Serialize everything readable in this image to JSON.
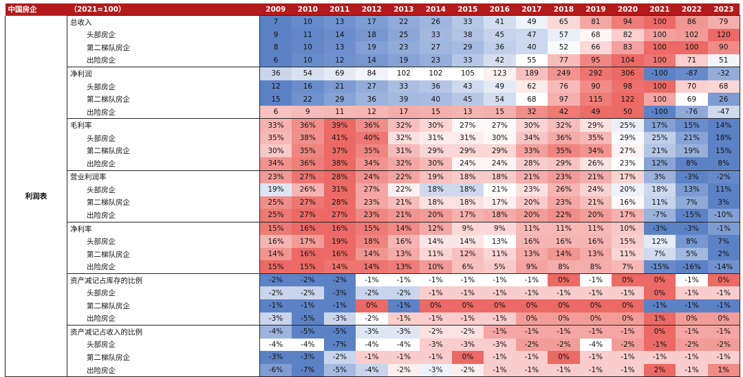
{
  "table": {
    "header_category": "中国房企",
    "header_index": "（2021=100）",
    "years": [
      "2009",
      "2010",
      "2011",
      "2012",
      "2013",
      "2014",
      "2015",
      "2016",
      "2017",
      "2018",
      "2019",
      "2020",
      "2021",
      "2022",
      "2023"
    ],
    "category": "利润表",
    "groups": [
      {
        "kind": "index",
        "rows": [
          {
            "label": "总收入",
            "indent": false,
            "values": [
              "7",
              "10",
              "13",
              "17",
              "22",
              "26",
              "33",
              "41",
              "49",
              "65",
              "81",
              "94",
              "100",
              "86",
              "79"
            ]
          },
          {
            "label": "头部房企",
            "indent": true,
            "values": [
              "9",
              "11",
              "14",
              "18",
              "25",
              "33",
              "38",
              "45",
              "47",
              "57",
              "68",
              "82",
              "100",
              "102",
              "120"
            ]
          },
          {
            "label": "第二梯队房企",
            "indent": true,
            "values": [
              "8",
              "10",
              "13",
              "19",
              "23",
              "27",
              "29",
              "36",
              "40",
              "52",
              "66",
              "83",
              "100",
              "100",
              "90"
            ]
          },
          {
            "label": "出险房企",
            "indent": true,
            "values": [
              "6",
              "10",
              "12",
              "14",
              "19",
              "23",
              "33",
              "42",
              "55",
              "77",
              "95",
              "104",
              "100",
              "71",
              "51"
            ]
          }
        ]
      },
      {
        "kind": "index",
        "rows": [
          {
            "label": "净利润",
            "indent": false,
            "values": [
              "36",
              "54",
              "69",
              "84",
              "102",
              "102",
              "105",
              "123",
              "189",
              "249",
              "292",
              "306",
              "-100",
              "-87",
              "-32"
            ]
          },
          {
            "label": "头部房企",
            "indent": true,
            "values": [
              "12",
              "16",
              "21",
              "27",
              "33",
              "36",
              "43",
              "49",
              "62",
              "76",
              "90",
              "98",
              "100",
              "70",
              "68"
            ]
          },
          {
            "label": "第二梯队房企",
            "indent": true,
            "values": [
              "15",
              "22",
              "29",
              "36",
              "39",
              "40",
              "45",
              "54",
              "68",
              "97",
              "115",
              "122",
              "100",
              "69",
              "26"
            ]
          },
          {
            "label": "出险房企",
            "indent": true,
            "values": [
              "6",
              "9",
              "11",
              "12",
              "17",
              "15",
              "13",
              "15",
              "32",
              "42",
              "49",
              "50",
              "-100",
              "-76",
              "-47"
            ]
          }
        ]
      },
      {
        "kind": "pct",
        "rows": [
          {
            "label": "毛利率",
            "indent": false,
            "values": [
              "33%",
              "36%",
              "39%",
              "36%",
              "32%",
              "30%",
              "27%",
              "27%",
              "30%",
              "32%",
              "29%",
              "25%",
              "17%",
              "15%",
              "14%"
            ]
          },
          {
            "label": "头部房企",
            "indent": true,
            "values": [
              "35%",
              "38%",
              "41%",
              "40%",
              "32%",
              "31%",
              "31%",
              "30%",
              "34%",
              "36%",
              "35%",
              "29%",
              "25%",
              "21%",
              "18%"
            ]
          },
          {
            "label": "第二梯队房企",
            "indent": true,
            "values": [
              "30%",
              "35%",
              "37%",
              "35%",
              "31%",
              "29%",
              "29%",
              "29%",
              "33%",
              "35%",
              "34%",
              "27%",
              "21%",
              "19%",
              "15%"
            ]
          },
          {
            "label": "出险房企",
            "indent": true,
            "values": [
              "34%",
              "36%",
              "38%",
              "34%",
              "32%",
              "30%",
              "24%",
              "24%",
              "28%",
              "29%",
              "26%",
              "23%",
              "12%",
              "8%",
              "8%"
            ]
          }
        ]
      },
      {
        "kind": "pct",
        "rows": [
          {
            "label": "营业利润率",
            "indent": false,
            "values": [
              "23%",
              "27%",
              "28%",
              "24%",
              "22%",
              "19%",
              "18%",
              "18%",
              "21%",
              "23%",
              "21%",
              "17%",
              "3%",
              "-3%",
              "-2%"
            ]
          },
          {
            "label": "头部房企",
            "indent": true,
            "values": [
              "19%",
              "26%",
              "31%",
              "27%",
              "22%",
              "18%",
              "18%",
              "21%",
              "23%",
              "26%",
              "24%",
              "20%",
              "18%",
              "13%",
              "11%"
            ]
          },
          {
            "label": "第二梯队房企",
            "indent": true,
            "values": [
              "25%",
              "27%",
              "28%",
              "23%",
              "21%",
              "18%",
              "18%",
              "17%",
              "20%",
              "23%",
              "21%",
              "16%",
              "11%",
              "7%",
              "3%"
            ]
          },
          {
            "label": "出险房企",
            "indent": true,
            "values": [
              "25%",
              "27%",
              "27%",
              "23%",
              "21%",
              "20%",
              "17%",
              "18%",
              "20%",
              "22%",
              "20%",
              "17%",
              "-7%",
              "-15%",
              "-10%"
            ]
          }
        ]
      },
      {
        "kind": "pct",
        "rows": [
          {
            "label": "净利率",
            "indent": false,
            "values": [
              "15%",
              "16%",
              "16%",
              "15%",
              "14%",
              "12%",
              "9%",
              "9%",
              "11%",
              "11%",
              "11%",
              "10%",
              "-3%",
              "-3%",
              "-1%"
            ]
          },
          {
            "label": "头部房企",
            "indent": true,
            "values": [
              "16%",
              "17%",
              "19%",
              "18%",
              "16%",
              "14%",
              "14%",
              "13%",
              "16%",
              "16%",
              "16%",
              "15%",
              "12%",
              "8%",
              "7%"
            ]
          },
          {
            "label": "第二梯队房企",
            "indent": true,
            "values": [
              "14%",
              "16%",
              "16%",
              "14%",
              "13%",
              "11%",
              "12%",
              "11%",
              "13%",
              "14%",
              "13%",
              "11%",
              "7%",
              "5%",
              "2%"
            ]
          },
          {
            "label": "出险房企",
            "indent": true,
            "values": [
              "15%",
              "15%",
              "14%",
              "14%",
              "13%",
              "10%",
              "6%",
              "5%",
              "9%",
              "8%",
              "8%",
              "7%",
              "-15%",
              "-16%",
              "-14%"
            ]
          }
        ]
      },
      {
        "kind": "small",
        "rows": [
          {
            "label": "资产减记占库存的比例",
            "indent": false,
            "values": [
              "-2%",
              "-2%",
              "-2%",
              "-1%",
              "-1%",
              "-1%",
              "-1%",
              "-1%",
              "-1%",
              "0%",
              "-1%",
              "0%",
              "0%",
              "-1%",
              "0%"
            ]
          },
          {
            "label": "头部房企",
            "indent": true,
            "values": [
              "-2%",
              "-2%",
              "-3%",
              "-2%",
              "-2%",
              "-1%",
              "-1%",
              "-1%",
              "-1%",
              "-1%",
              "-1%",
              "-1%",
              "0%",
              "-1%",
              "-1%"
            ]
          },
          {
            "label": "第二梯队房企",
            "indent": true,
            "values": [
              "-1%",
              "-1%",
              "-1%",
              "0%",
              "-1%",
              "0%",
              "0%",
              "0%",
              "0%",
              "0%",
              "0%",
              "0%",
              "-1%",
              "-1%",
              "-1%"
            ]
          },
          {
            "label": "出险房企",
            "indent": true,
            "values": [
              "-3%",
              "-5%",
              "-3%",
              "-2%",
              "-1%",
              "-1%",
              "-1%",
              "-1%",
              "0%",
              "0%",
              "0%",
              "0%",
              "1%",
              "0%",
              "0%"
            ]
          }
        ]
      },
      {
        "kind": "small",
        "rows": [
          {
            "label": "资产减记占收入的比例",
            "indent": false,
            "values": [
              "-4%",
              "-5%",
              "-5%",
              "-3%",
              "-3%",
              "-2%",
              "-2%",
              "-1%",
              "-1%",
              "-1%",
              "-1%",
              "-1%",
              "0%",
              "-1%",
              "-1%"
            ]
          },
          {
            "label": "头部房企",
            "indent": true,
            "values": [
              "-4%",
              "-4%",
              "-7%",
              "-4%",
              "-4%",
              "-3%",
              "-3%",
              "-3%",
              "-2%",
              "-2%",
              "-4%",
              "-2%",
              "-1%",
              "-2%",
              "-2%"
            ]
          },
          {
            "label": "第二梯队房企",
            "indent": true,
            "values": [
              "-3%",
              "-3%",
              "-2%",
              "-1%",
              "-1%",
              "-1%",
              "0%",
              "-1%",
              "-1%",
              "0%",
              "-1%",
              "-1%",
              "-1%",
              "-1%",
              "-1%"
            ]
          },
          {
            "label": "出险房企",
            "indent": true,
            "values": [
              "-6%",
              "-7%",
              "-5%",
              "-4%",
              "-2%",
              "-3%",
              "-2%",
              "-1%",
              "-1%",
              "-1%",
              "-1%",
              "-1%",
              "2%",
              "-1%",
              "1%"
            ]
          }
        ]
      }
    ]
  },
  "chart_data": {
    "type": "heatmap",
    "title": "",
    "x": [
      "2009",
      "2010",
      "2011",
      "2012",
      "2013",
      "2014",
      "2015",
      "2016",
      "2017",
      "2018",
      "2019",
      "2020",
      "2021",
      "2022",
      "2023"
    ],
    "rows": [
      "总收入",
      "头部房企",
      "第二梯队房企",
      "出险房企",
      "净利润",
      "头部房企",
      "第二梯队房企",
      "出险房企",
      "毛利率",
      "头部房企",
      "第二梯队房企",
      "出险房企",
      "营业利润率",
      "头部房企",
      "第二梯队房企",
      "出险房企",
      "净利率",
      "头部房企",
      "第二梯队房企",
      "出险房企",
      "资产减记占库存的比例",
      "头部房企",
      "第二梯队房企",
      "出险房企",
      "资产减记占收入的比例",
      "头部房企",
      "第二梯队房企",
      "出险房企"
    ],
    "values": [
      [
        7,
        10,
        13,
        17,
        22,
        26,
        33,
        41,
        49,
        65,
        81,
        94,
        100,
        86,
        79
      ],
      [
        9,
        11,
        14,
        18,
        25,
        33,
        38,
        45,
        47,
        57,
        68,
        82,
        100,
        102,
        120
      ],
      [
        8,
        10,
        13,
        19,
        23,
        27,
        29,
        36,
        40,
        52,
        66,
        83,
        100,
        100,
        90
      ],
      [
        6,
        10,
        12,
        14,
        19,
        23,
        33,
        42,
        55,
        77,
        95,
        104,
        100,
        71,
        51
      ],
      [
        36,
        54,
        69,
        84,
        102,
        102,
        105,
        123,
        189,
        249,
        292,
        306,
        -100,
        -87,
        -32
      ],
      [
        12,
        16,
        21,
        27,
        33,
        36,
        43,
        49,
        62,
        76,
        90,
        98,
        100,
        70,
        68
      ],
      [
        15,
        22,
        29,
        36,
        39,
        40,
        45,
        54,
        68,
        97,
        115,
        122,
        100,
        69,
        26
      ],
      [
        6,
        9,
        11,
        12,
        17,
        15,
        13,
        15,
        32,
        42,
        49,
        50,
        -100,
        -76,
        -47
      ],
      [
        33,
        36,
        39,
        36,
        32,
        30,
        27,
        27,
        30,
        32,
        29,
        25,
        17,
        15,
        14
      ],
      [
        35,
        38,
        41,
        40,
        32,
        31,
        31,
        30,
        34,
        36,
        35,
        29,
        25,
        21,
        18
      ],
      [
        30,
        35,
        37,
        35,
        31,
        29,
        29,
        29,
        33,
        35,
        34,
        27,
        21,
        19,
        15
      ],
      [
        34,
        36,
        38,
        34,
        32,
        30,
        24,
        24,
        28,
        29,
        26,
        23,
        12,
        8,
        8
      ],
      [
        23,
        27,
        28,
        24,
        22,
        19,
        18,
        18,
        21,
        23,
        21,
        17,
        3,
        -3,
        -2
      ],
      [
        19,
        26,
        31,
        27,
        22,
        18,
        18,
        21,
        23,
        26,
        24,
        20,
        18,
        13,
        11
      ],
      [
        25,
        27,
        28,
        23,
        21,
        18,
        18,
        17,
        20,
        23,
        21,
        16,
        11,
        7,
        3
      ],
      [
        25,
        27,
        27,
        23,
        21,
        20,
        17,
        18,
        20,
        22,
        20,
        17,
        -7,
        -15,
        -10
      ],
      [
        15,
        16,
        16,
        15,
        14,
        12,
        9,
        9,
        11,
        11,
        11,
        10,
        -3,
        -3,
        -1
      ],
      [
        16,
        17,
        19,
        18,
        16,
        14,
        14,
        13,
        16,
        16,
        16,
        15,
        12,
        8,
        7
      ],
      [
        14,
        16,
        16,
        14,
        13,
        11,
        12,
        11,
        13,
        14,
        13,
        11,
        7,
        5,
        2
      ],
      [
        15,
        15,
        14,
        14,
        13,
        10,
        6,
        5,
        9,
        8,
        8,
        7,
        -15,
        -16,
        -14
      ],
      [
        -2,
        -2,
        -2,
        -1,
        -1,
        -1,
        -1,
        -1,
        -1,
        0,
        -1,
        0,
        0,
        -1,
        0
      ],
      [
        -2,
        -2,
        -3,
        -2,
        -2,
        -1,
        -1,
        -1,
        -1,
        -1,
        -1,
        -1,
        0,
        -1,
        -1
      ],
      [
        -1,
        -1,
        -1,
        0,
        -1,
        0,
        0,
        0,
        0,
        0,
        0,
        0,
        -1,
        -1,
        -1
      ],
      [
        -3,
        -5,
        -3,
        -2,
        -1,
        -1,
        -1,
        -1,
        0,
        0,
        0,
        0,
        1,
        0,
        0
      ],
      [
        -4,
        -5,
        -5,
        -3,
        -3,
        -2,
        -2,
        -1,
        -1,
        -1,
        -1,
        -1,
        0,
        -1,
        -1
      ],
      [
        -4,
        -4,
        -7,
        -4,
        -4,
        -3,
        -3,
        -3,
        -2,
        -2,
        -4,
        -2,
        -1,
        -2,
        -2
      ],
      [
        -3,
        -3,
        -2,
        -1,
        -1,
        -1,
        0,
        -1,
        -1,
        0,
        -1,
        -1,
        -1,
        -1,
        -1
      ],
      [
        -6,
        -7,
        -5,
        -4,
        -2,
        -3,
        -2,
        -1,
        -1,
        -1,
        -1,
        -1,
        2,
        -1,
        1
      ]
    ],
    "colors": {
      "high": "#e8504a",
      "mid": "#ffffff",
      "low": "#4a74c0",
      "header": "#b31b1b"
    }
  }
}
